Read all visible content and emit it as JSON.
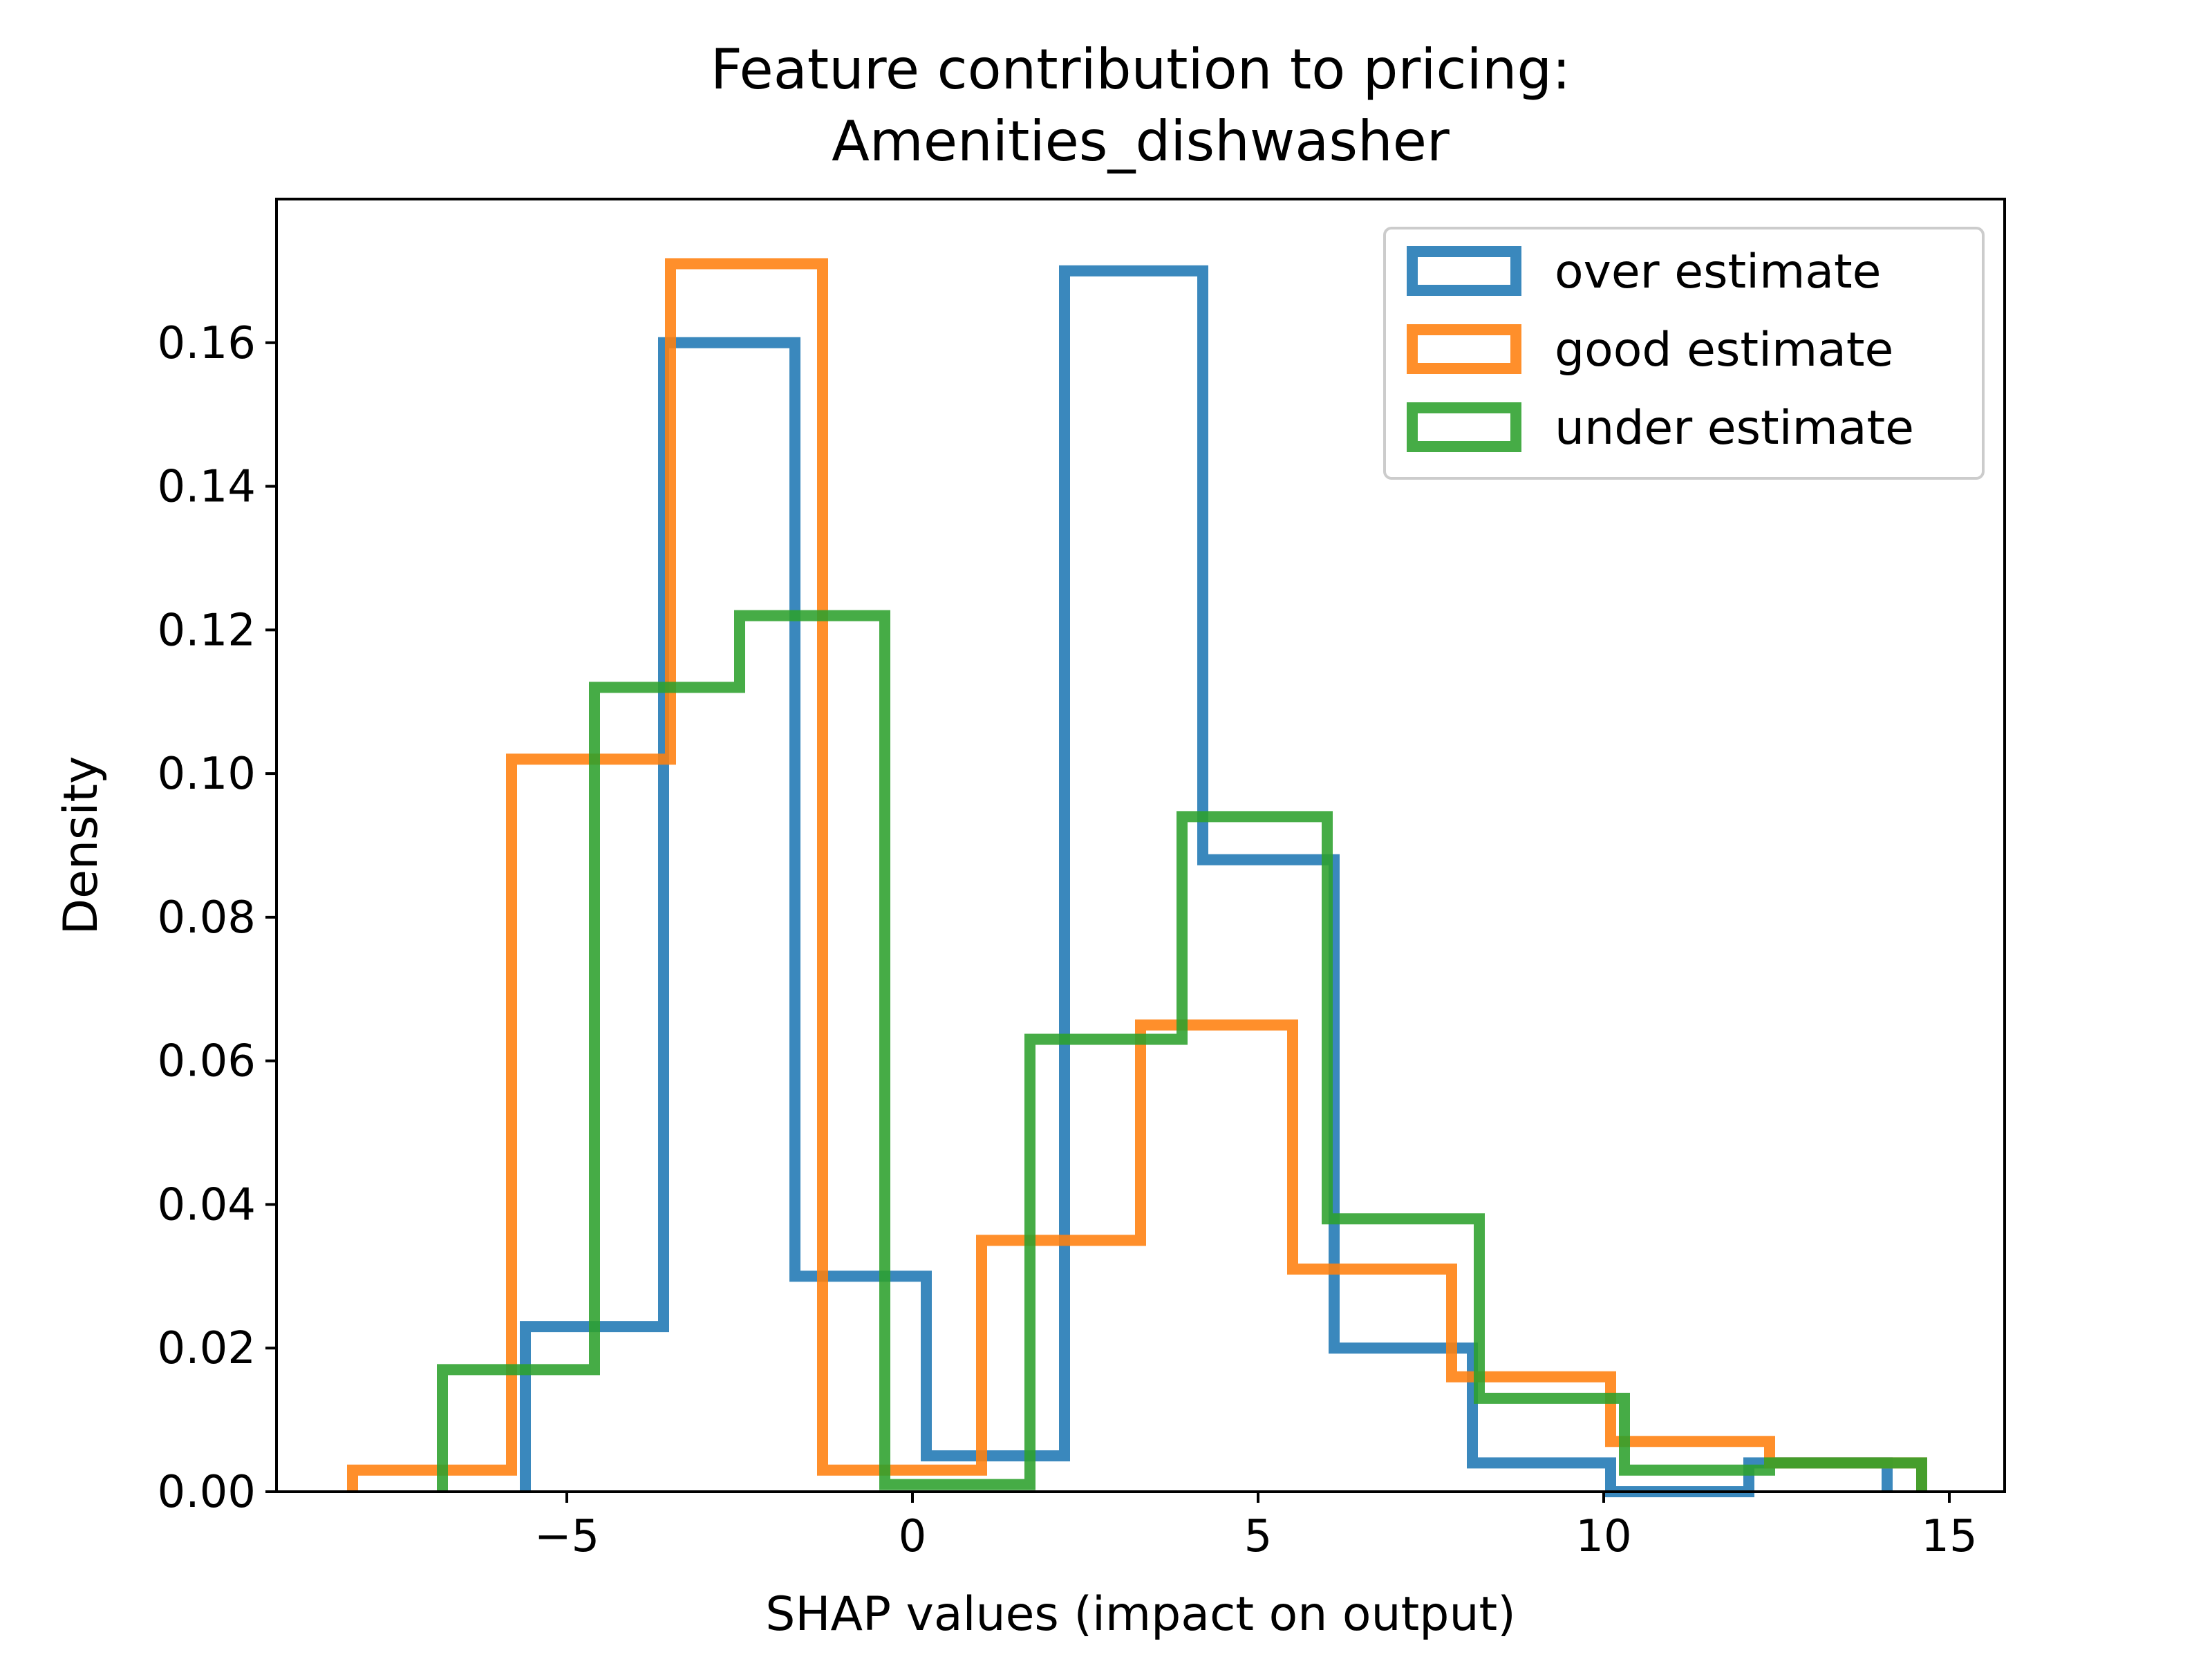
{
  "chart_data": {
    "type": "histogram",
    "title_line1": "Feature contribution to pricing:",
    "title_line2": "Amenities_dishwasher",
    "xlabel": "SHAP values (impact on output)",
    "ylabel": "Density",
    "xlim": [
      -9.2,
      15.8
    ],
    "ylim": [
      0,
      0.18
    ],
    "xticks": [
      -5,
      0,
      5,
      10,
      15
    ],
    "xtick_labels": [
      "−5",
      "0",
      "5",
      "10",
      "15"
    ],
    "yticks": [
      0,
      0.02,
      0.04,
      0.06,
      0.08,
      0.1,
      0.12,
      0.14,
      0.16
    ],
    "ytick_labels": [
      "0.00",
      "0.02",
      "0.04",
      "0.06",
      "0.08",
      "0.10",
      "0.12",
      "0.14",
      "0.16"
    ],
    "grid": false,
    "legend_position": "top-right",
    "series": [
      {
        "name": "over estimate",
        "color": "#1f77b4",
        "edges": [
          -5.6,
          -3.6,
          -1.7,
          0.2,
          2.2,
          4.2,
          6.1,
          8.1,
          10.1,
          12.1,
          14.1
        ],
        "values": [
          0.023,
          0.16,
          0.03,
          0.005,
          0.17,
          0.088,
          0.02,
          0.004,
          0.0,
          0.004
        ]
      },
      {
        "name": "good estimate",
        "color": "#ff7f0e",
        "edges": [
          -8.1,
          -5.8,
          -3.5,
          -1.3,
          1.0,
          3.3,
          5.5,
          7.8,
          10.1,
          12.4,
          14.6
        ],
        "values": [
          0.003,
          0.102,
          0.171,
          0.003,
          0.035,
          0.065,
          0.031,
          0.016,
          0.007,
          0.004
        ]
      },
      {
        "name": "under estimate",
        "color": "#2ca02c",
        "edges": [
          -6.8,
          -4.6,
          -2.5,
          -0.4,
          1.7,
          3.9,
          6.0,
          8.2,
          10.3,
          12.4,
          14.6
        ],
        "values": [
          0.017,
          0.112,
          0.122,
          0.001,
          0.063,
          0.094,
          0.038,
          0.013,
          0.003,
          0.004
        ]
      }
    ]
  }
}
